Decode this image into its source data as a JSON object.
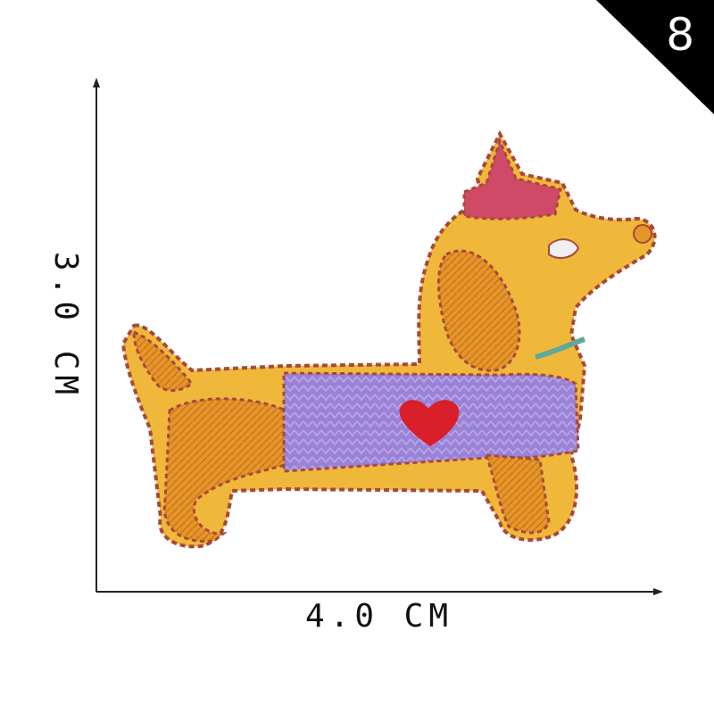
{
  "badge": {
    "number": "8"
  },
  "dimensions": {
    "width_label": "4.0 CM",
    "height_label": "3.0 CM"
  },
  "colors": {
    "felt": "#f0b83a",
    "stitch": "#a8483c",
    "sweater": "#9a82d6",
    "heart": "#d91f2a",
    "hat": "#cf4a66",
    "ear": "#e8972a",
    "badge_bg": "#000000"
  }
}
